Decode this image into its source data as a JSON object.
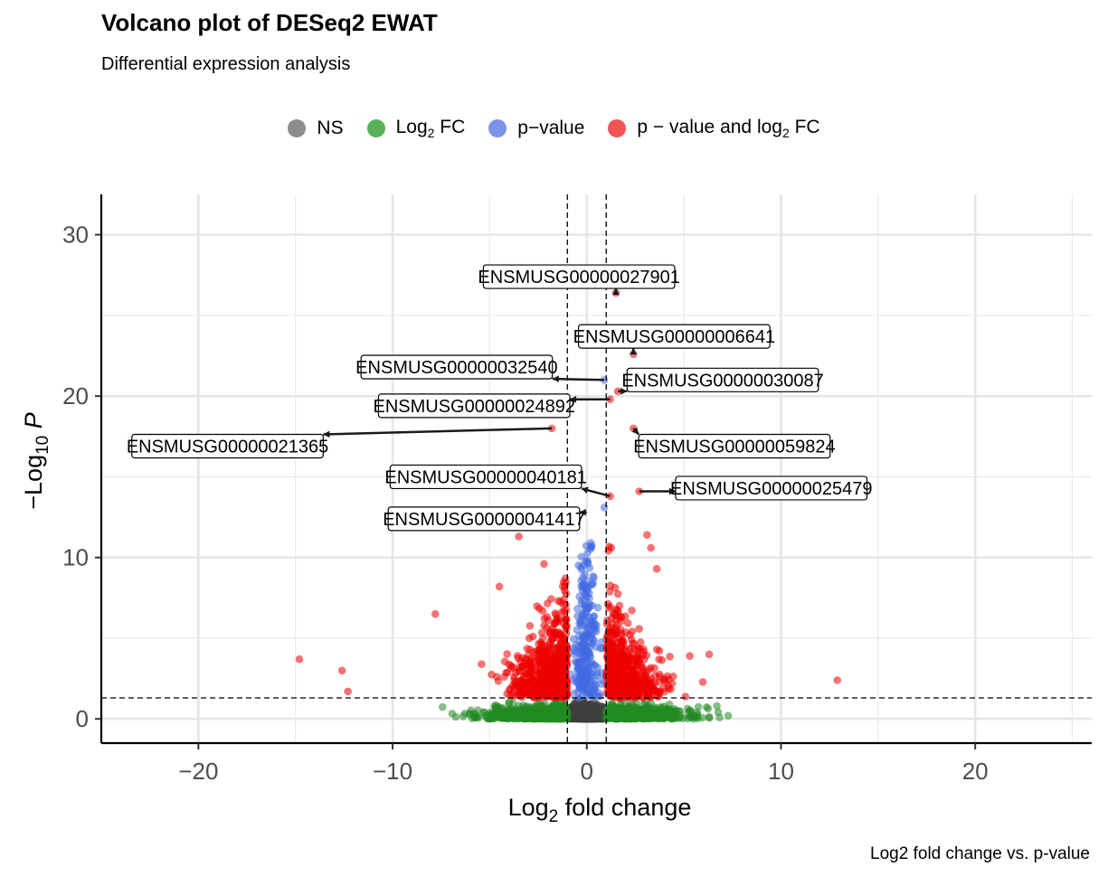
{
  "chart_data": {
    "type": "scatter",
    "title": "Volcano plot of DESeq2 EWAT",
    "subtitle": "Differential expression analysis",
    "caption": "Log2 fold change vs. p-value",
    "xlabel": "Log",
    "xlabel_sub": "2",
    "xlabel_rest": " fold change",
    "ylabel": "−Log",
    "ylabel_sub": "10",
    "ylabel_rest": " P",
    "xlim": [
      -25,
      26
    ],
    "ylim": [
      -1.5,
      32.5
    ],
    "x_ticks": [
      -20,
      -10,
      0,
      10,
      20
    ],
    "x_tick_labels": [
      "−20",
      "−10",
      "0",
      "10",
      "20"
    ],
    "y_ticks": [
      0,
      10,
      20,
      30
    ],
    "y_tick_labels": [
      "0",
      "10",
      "20",
      "30"
    ],
    "grid": true,
    "legend_position": "top",
    "fc_cutoff": 1,
    "p_cutoff_neglog10": 1.3,
    "legend": [
      {
        "key": "ns",
        "label": "NS",
        "sub": "",
        "rest": "",
        "color": "#8c8c8c"
      },
      {
        "key": "fc",
        "label": "Log",
        "sub": "2",
        "rest": " FC",
        "color": "#59b259"
      },
      {
        "key": "p",
        "label": "p−value",
        "sub": "",
        "rest": "",
        "color": "#7b93e8"
      },
      {
        "key": "both",
        "label": "p − value and log",
        "sub": "2",
        "rest": " FC",
        "color": "#f25555"
      }
    ],
    "colors": {
      "ns": "#404040",
      "fc": "#228b22",
      "p": "#4169e1",
      "both": "#ee0000"
    },
    "outliers": [
      {
        "x": 1.5,
        "y": 26.4,
        "group": "both"
      },
      {
        "x": 2.4,
        "y": 22.6,
        "group": "both"
      },
      {
        "x": 0.9,
        "y": 21.0,
        "group": "p"
      },
      {
        "x": 1.6,
        "y": 20.3,
        "group": "both"
      },
      {
        "x": 1.2,
        "y": 19.8,
        "group": "both"
      },
      {
        "x": -1.8,
        "y": 18.0,
        "group": "both"
      },
      {
        "x": 2.4,
        "y": 18.0,
        "group": "both"
      },
      {
        "x": 2.7,
        "y": 14.1,
        "group": "both"
      },
      {
        "x": 1.2,
        "y": 13.8,
        "group": "both"
      },
      {
        "x": 0.9,
        "y": 13.1,
        "group": "p"
      },
      {
        "x": -14.8,
        "y": 3.7,
        "group": "both"
      },
      {
        "x": -12.6,
        "y": 3.0,
        "group": "both"
      },
      {
        "x": -12.3,
        "y": 1.7,
        "group": "both"
      },
      {
        "x": -7.8,
        "y": 6.5,
        "group": "both"
      },
      {
        "x": 5.3,
        "y": 3.9,
        "group": "both"
      },
      {
        "x": 6.3,
        "y": 4.0,
        "group": "both"
      },
      {
        "x": 12.9,
        "y": 2.4,
        "group": "both"
      },
      {
        "x": 6.7,
        "y": 0.8,
        "group": "fc"
      },
      {
        "x": 3.1,
        "y": 11.4,
        "group": "both"
      },
      {
        "x": 3.3,
        "y": 10.6,
        "group": "both"
      },
      {
        "x": -3.5,
        "y": 11.3,
        "group": "both"
      },
      {
        "x": -2.2,
        "y": 9.6,
        "group": "both"
      },
      {
        "x": -4.5,
        "y": 8.2,
        "group": "both"
      },
      {
        "x": 3.6,
        "y": 9.3,
        "group": "both"
      }
    ],
    "labels": [
      {
        "text": "ENSMUSG00000027901",
        "x": 1.5,
        "y": 26.4,
        "lx": -0.4,
        "ly": 27.4
      },
      {
        "text": "ENSMUSG00000006641",
        "x": 2.4,
        "y": 22.6,
        "lx": 4.5,
        "ly": 23.7
      },
      {
        "text": "ENSMUSG00000032540",
        "x": 0.9,
        "y": 21.0,
        "lx": -6.7,
        "ly": 21.8
      },
      {
        "text": "ENSMUSG00000030087",
        "x": 1.6,
        "y": 20.3,
        "lx": 7.0,
        "ly": 21.0
      },
      {
        "text": "ENSMUSG00000024892",
        "x": 1.2,
        "y": 19.8,
        "lx": -5.8,
        "ly": 19.4
      },
      {
        "text": "ENSMUSG00000021365",
        "x": -1.8,
        "y": 18.0,
        "lx": -18.5,
        "ly": 16.9
      },
      {
        "text": "ENSMUSG00000059824",
        "x": 2.4,
        "y": 18.0,
        "lx": 7.6,
        "ly": 16.9
      },
      {
        "text": "ENSMUSG00000040181",
        "x": 1.2,
        "y": 13.8,
        "lx": -5.2,
        "ly": 15.0
      },
      {
        "text": "ENSMUSG00000025479",
        "x": 2.7,
        "y": 14.1,
        "lx": 9.5,
        "ly": 14.3
      },
      {
        "text": "ENSMUSG00000041417",
        "x": 0.0,
        "y": 12.8,
        "lx": -5.3,
        "ly": 12.4
      }
    ]
  }
}
